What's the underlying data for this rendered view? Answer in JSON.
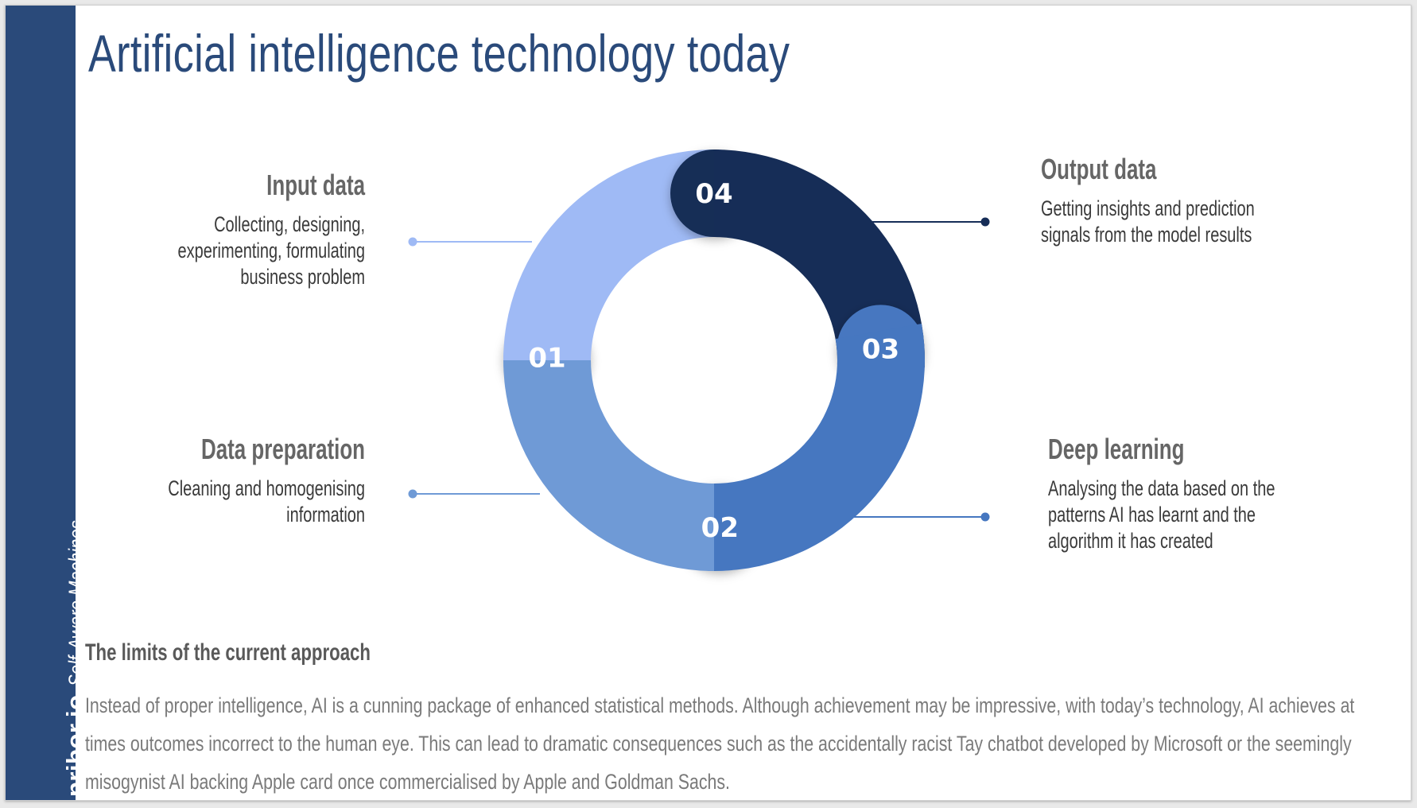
{
  "brand": {
    "site": "pribor.io",
    "tagline": "Self-Aware Machines",
    "reg": "®"
  },
  "title": "Artificial intelligence technology today",
  "diagram": {
    "colors": {
      "seg01": "#9fbaf5",
      "seg02": "#6f9ad6",
      "seg03": "#4677c0",
      "seg04": "#162d57"
    },
    "segments": [
      {
        "number": "01",
        "heading": "Input data",
        "text": "Collecting, designing, experimenting, formulating business problem"
      },
      {
        "number": "02",
        "heading": "Data preparation",
        "text": "Cleaning and homogenising information"
      },
      {
        "number": "03",
        "heading": "Deep learning",
        "text": "Analysing the data based on the patterns AI has learnt and the algorithm it has created"
      },
      {
        "number": "04",
        "heading": "Output data",
        "text": "Getting insights and prediction signals from the model results"
      }
    ]
  },
  "limits": {
    "title": "The limits of the current approach",
    "text": "Instead of proper intelligence, AI is a cunning package of enhanced statistical methods. Although achievement may be impressive, with today’s technology, AI achieves at times outcomes incorrect to the  human  eye. This can lead to dramatic consequences such as the accidentally racist Tay chatbot developed by Microsoft or the seemingly misogynist  AI backing Apple card once commercialised by Apple and Goldman Sachs."
  }
}
